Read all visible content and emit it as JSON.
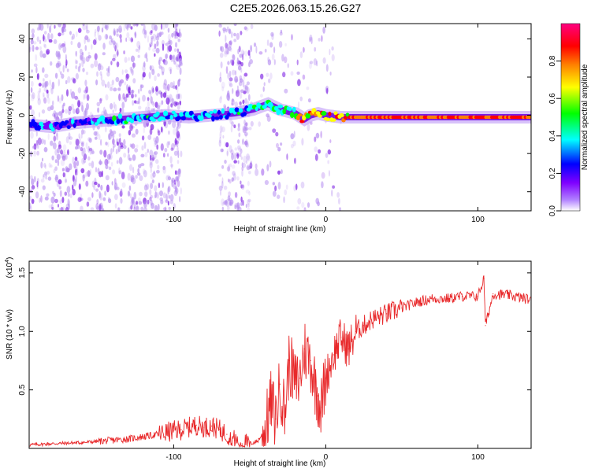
{
  "title": "C2E5.2026.063.15.26.G27",
  "spectrogram": {
    "type": "heatmap",
    "xlabel": "Height of straight line (km)",
    "ylabel": "Frequency (Hz)",
    "xlim": [
      -195,
      135
    ],
    "ylim": [
      -50,
      48
    ],
    "xticks": [
      -100,
      0,
      100
    ],
    "yticks": [
      40,
      20,
      0,
      -20,
      -40
    ],
    "ridge": [
      [
        -195,
        -5
      ],
      [
        -180,
        -6
      ],
      [
        -165,
        -4
      ],
      [
        -150,
        -3
      ],
      [
        -135,
        -2
      ],
      [
        -120,
        -1
      ],
      [
        -105,
        0
      ],
      [
        -90,
        -1
      ],
      [
        -75,
        0
      ],
      [
        -60,
        1
      ],
      [
        -48,
        3
      ],
      [
        -38,
        6
      ],
      [
        -30,
        3
      ],
      [
        -20,
        1
      ],
      [
        -14,
        -2
      ],
      [
        -10,
        0
      ],
      [
        -5,
        1
      ],
      [
        0,
        0
      ],
      [
        10,
        -1
      ],
      [
        20,
        -1
      ],
      [
        40,
        -1
      ],
      [
        60,
        -1
      ],
      [
        80,
        -1
      ],
      [
        100,
        -1
      ],
      [
        120,
        -1
      ],
      [
        135,
        -1
      ]
    ]
  },
  "colorbar": {
    "label": "Normalized spectral amplitude",
    "ticks": [
      "0.0",
      "0.2",
      "0.4",
      "0.6",
      "0.8"
    ],
    "tick_values": [
      0.0,
      0.2,
      0.4,
      0.6,
      0.8
    ],
    "range": [
      0,
      1
    ],
    "colors": [
      "#ffffff",
      "#7f00ff",
      "#0000ff",
      "#00ffff",
      "#00ff00",
      "#ffff00",
      "#ff8000",
      "#ff0000",
      "#ff0080"
    ]
  },
  "chart_data": {
    "type": "line",
    "series_name": "SNR",
    "xlabel": "Height of straight line (km)",
    "ylabel": "SNR (10 * v/v)",
    "scale_label": "(x10",
    "scale_exp": "4",
    "xlim": [
      -195,
      135
    ],
    "ylim": [
      0,
      1.6
    ],
    "xticks": [
      -100,
      0,
      100
    ],
    "yticks": [
      0.5,
      1.0,
      1.5
    ],
    "ytick_labels": [
      "0.5",
      "1.0",
      "1.5"
    ],
    "x": [
      -195,
      -180,
      -160,
      -150,
      -140,
      -130,
      -120,
      -110,
      -100,
      -95,
      -90,
      -85,
      -80,
      -75,
      -70,
      -65,
      -60,
      -55,
      -50,
      -45,
      -40,
      -36,
      -33,
      -30,
      -27,
      -24,
      -20,
      -17,
      -14,
      -10,
      -7,
      -5,
      -3,
      0,
      5,
      10,
      15,
      20,
      25,
      30,
      40,
      50,
      60,
      70,
      80,
      90,
      100,
      104,
      105,
      110,
      120,
      135
    ],
    "y": [
      0.03,
      0.04,
      0.05,
      0.06,
      0.07,
      0.08,
      0.1,
      0.12,
      0.15,
      0.16,
      0.18,
      0.2,
      0.18,
      0.19,
      0.16,
      0.12,
      0.07,
      0.04,
      0.04,
      0.06,
      0.15,
      0.4,
      0.25,
      0.55,
      0.3,
      0.75,
      0.55,
      0.6,
      0.85,
      0.75,
      0.55,
      0.45,
      0.35,
      0.6,
      0.8,
      0.95,
      0.85,
      1.0,
      1.05,
      1.1,
      1.15,
      1.2,
      1.25,
      1.28,
      1.28,
      1.3,
      1.3,
      1.45,
      1.05,
      1.32,
      1.31,
      1.27
    ]
  }
}
